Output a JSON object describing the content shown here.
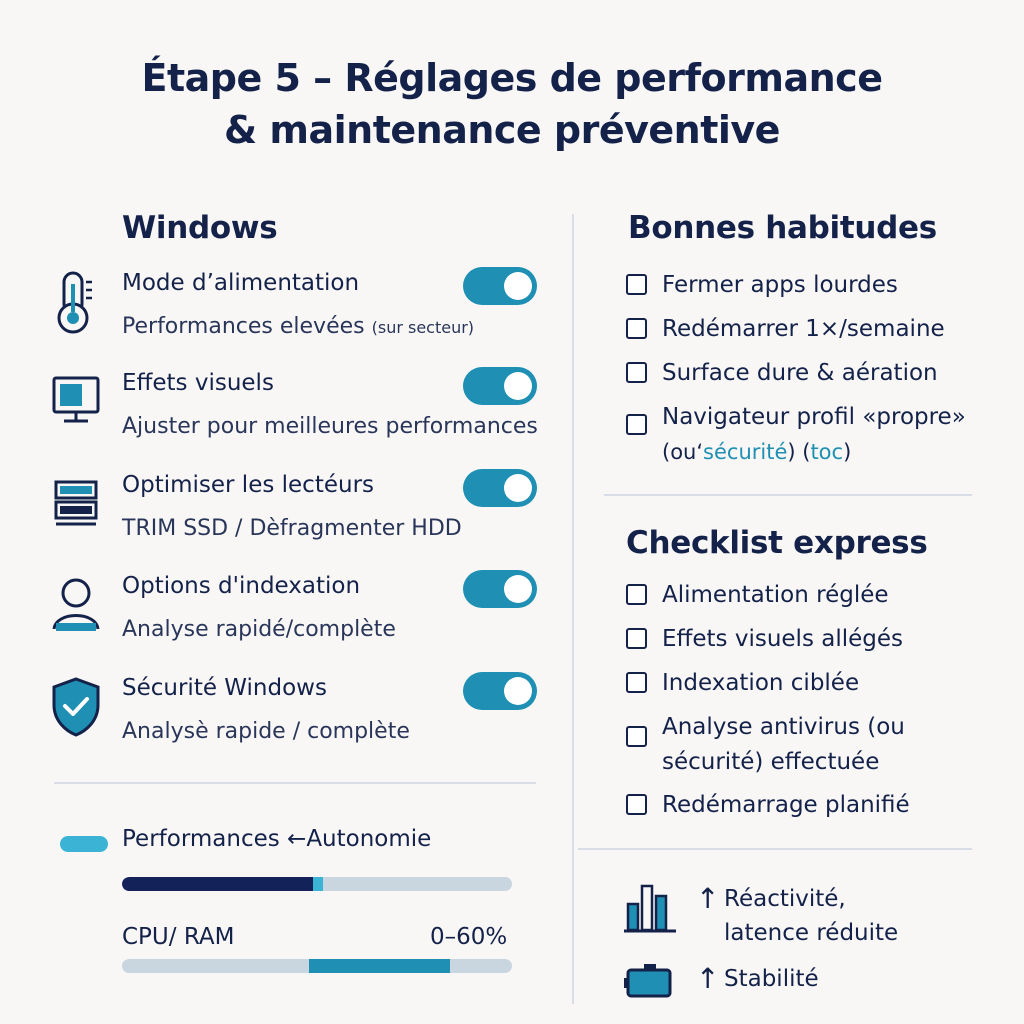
{
  "title": {
    "line1": "Étape 5 – Réglages de performance",
    "line2": "& maintenance préventive"
  },
  "windows": {
    "heading": "Windows",
    "settings": [
      {
        "label": "Mode d’alimentation",
        "sub": "Performances elevées",
        "sub_small": "(sur secteur)",
        "icon": "thermometer-icon",
        "enabled": true
      },
      {
        "label": "Effets visuels",
        "sub": "Ajuster pour meilleures performances",
        "icon": "monitor-icon",
        "enabled": true
      },
      {
        "label": "Optimiser les lectéurs",
        "sub": "TRIM SSD / Dèfragmenter HDD",
        "icon": "drive-icon",
        "enabled": true
      },
      {
        "label": "Options d'indexation",
        "sub": "Analyse rapidé/complète",
        "icon": "user-icon",
        "enabled": true
      },
      {
        "label": "Sécurité Windows",
        "sub": "Analysè rapide / complète",
        "icon": "shield-check-icon",
        "enabled": true
      }
    ]
  },
  "balance": {
    "legend": "Performances ←Autonomie",
    "perf_fraction": 0.5,
    "cpu_label": "CPU/ RAM",
    "cpu_value": "0–60%",
    "cpu_range": [
      0,
      0.6
    ],
    "colors": {
      "dark": "#14225a",
      "accent": "#1f8fb3",
      "light": "#3ab3d4"
    }
  },
  "habits": {
    "heading": "Bonnes habitudes",
    "items": [
      {
        "text": "Fermer apps lourdes"
      },
      {
        "text": "Redémarrer 1×/semaine"
      },
      {
        "text": "Surface dure & aération"
      },
      {
        "text": "Navigateur profil «propre»",
        "text2_a": "(ou‘",
        "text2_hl": "sécurité",
        "text2_b": ") (",
        "text2_hl2": "toc",
        "text2_c": ")"
      }
    ]
  },
  "checklist": {
    "heading": "Checklist express",
    "items": [
      {
        "text": "Alimentation réglée"
      },
      {
        "text": "Effets visuels allégés"
      },
      {
        "text": "Indexation ciblée"
      },
      {
        "text": "Analyse antivirus (ou",
        "text2": "sécurité) effectuée"
      },
      {
        "text": "Redémarrage planifié"
      }
    ]
  },
  "impacts": [
    {
      "icon": "bar-chart-icon",
      "arrow": "↑",
      "line1": "Réactivité,",
      "line2": "latence réduite"
    },
    {
      "icon": "battery-icon",
      "arrow": "↑",
      "line1": "Stabilité"
    }
  ]
}
